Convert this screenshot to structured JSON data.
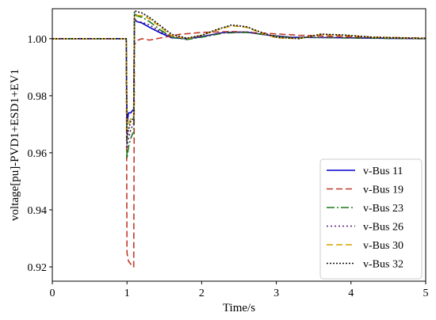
{
  "chart_data": {
    "type": "line",
    "title": "",
    "xlabel": "Time/s",
    "ylabel": "voltage[pu]-PVD1+ESD1+EV1",
    "xlim": [
      0,
      5
    ],
    "ylim": [
      0.915,
      1.0105
    ],
    "xticks": [
      "0",
      "1",
      "2",
      "3",
      "4",
      "5"
    ],
    "yticks": [
      "0.92",
      "0.94",
      "0.96",
      "0.98",
      "1.00"
    ],
    "grid": false,
    "legend_position": "lower-right",
    "series": [
      {
        "name": "v-Bus 11",
        "color": "#0000cc",
        "dash": "solid",
        "points": [
          [
            0,
            1.0
          ],
          [
            0.99,
            1.0
          ],
          [
            1.0,
            0.97
          ],
          [
            1.02,
            0.974
          ],
          [
            1.05,
            0.974
          ],
          [
            1.08,
            0.975
          ],
          [
            1.09,
            0.975
          ],
          [
            1.1,
            1.007
          ],
          [
            1.13,
            1.006
          ],
          [
            1.2,
            1.0055
          ],
          [
            1.3,
            1.004
          ],
          [
            1.45,
            1.002
          ],
          [
            1.6,
            1.0003
          ],
          [
            1.8,
            1.0
          ],
          [
            2.0,
            1.0007
          ],
          [
            2.3,
            1.0022
          ],
          [
            2.6,
            1.0023
          ],
          [
            2.9,
            1.0012
          ],
          [
            3.2,
            1.0005
          ],
          [
            3.6,
            1.0004
          ],
          [
            4.0,
            1.0003
          ],
          [
            4.5,
            1.0001
          ],
          [
            5.0,
            1.0
          ]
        ]
      },
      {
        "name": "v-Bus 19",
        "color": "#c0392b",
        "dash": "8,4",
        "points": [
          [
            0,
            1.0
          ],
          [
            0.99,
            1.0
          ],
          [
            1.0,
            0.925
          ],
          [
            1.02,
            0.922
          ],
          [
            1.05,
            0.921
          ],
          [
            1.08,
            0.92
          ],
          [
            1.09,
            0.92
          ],
          [
            1.1,
            0.998
          ],
          [
            1.15,
            0.9995
          ],
          [
            1.2,
            1.0
          ],
          [
            1.3,
            0.9995
          ],
          [
            1.5,
            1.0005
          ],
          [
            1.7,
            1.0015
          ],
          [
            2.0,
            1.0022
          ],
          [
            2.4,
            1.0025
          ],
          [
            2.8,
            1.002
          ],
          [
            3.3,
            1.0012
          ],
          [
            3.8,
            1.0008
          ],
          [
            4.3,
            1.0005
          ],
          [
            5.0,
            1.0002
          ]
        ]
      },
      {
        "name": "v-Bus 23",
        "color": "#1a7a1a",
        "dash": "10,3,2,3",
        "points": [
          [
            0,
            1.0
          ],
          [
            0.99,
            1.0
          ],
          [
            1.0,
            0.958
          ],
          [
            1.02,
            0.962
          ],
          [
            1.05,
            0.965
          ],
          [
            1.08,
            0.967
          ],
          [
            1.09,
            0.967
          ],
          [
            1.1,
            1.009
          ],
          [
            1.13,
            1.008
          ],
          [
            1.2,
            1.0075
          ],
          [
            1.3,
            1.006
          ],
          [
            1.45,
            1.003
          ],
          [
            1.6,
            1.0005
          ],
          [
            1.8,
            0.9997
          ],
          [
            2.0,
            1.0005
          ],
          [
            2.3,
            1.002
          ],
          [
            2.6,
            1.0022
          ],
          [
            2.9,
            1.0012
          ],
          [
            3.2,
            1.0004
          ],
          [
            3.6,
            1.0004
          ],
          [
            4.0,
            1.0002
          ],
          [
            5.0,
            1.0
          ]
        ]
      },
      {
        "name": "v-Bus 26",
        "color": "#5a1a7a",
        "dash": "2,3",
        "points": [
          [
            0,
            1.0
          ],
          [
            0.99,
            1.0
          ],
          [
            1.0,
            0.962
          ],
          [
            1.02,
            0.965
          ],
          [
            1.05,
            0.968
          ],
          [
            1.08,
            0.97
          ],
          [
            1.09,
            0.97
          ],
          [
            1.1,
            1.0065
          ],
          [
            1.13,
            1.006
          ],
          [
            1.2,
            1.0058
          ],
          [
            1.3,
            1.0048
          ],
          [
            1.45,
            1.0025
          ],
          [
            1.6,
            1.0008
          ],
          [
            1.8,
            1.0
          ],
          [
            2.0,
            1.0008
          ],
          [
            2.3,
            1.0022
          ],
          [
            2.6,
            1.0024
          ],
          [
            2.9,
            1.0012
          ],
          [
            3.2,
            1.0005
          ],
          [
            3.6,
            1.0004
          ],
          [
            4.0,
            1.0003
          ],
          [
            5.0,
            1.0
          ]
        ]
      },
      {
        "name": "v-Bus 30",
        "color": "#d4a000",
        "dash": "8,4",
        "points": [
          [
            0,
            1.0
          ],
          [
            0.99,
            1.0
          ],
          [
            1.0,
            0.968
          ],
          [
            1.02,
            0.97
          ],
          [
            1.05,
            0.972
          ],
          [
            1.08,
            0.973
          ],
          [
            1.09,
            0.973
          ],
          [
            1.1,
            1.0085
          ],
          [
            1.13,
            1.0082
          ],
          [
            1.2,
            1.008
          ],
          [
            1.3,
            1.007
          ],
          [
            1.45,
            1.004
          ],
          [
            1.6,
            1.001
          ],
          [
            1.8,
            1.0
          ],
          [
            2.0,
            1.0012
          ],
          [
            2.2,
            1.003
          ],
          [
            2.4,
            1.0045
          ],
          [
            2.6,
            1.004
          ],
          [
            2.8,
            1.002
          ],
          [
            3.0,
            1.0003
          ],
          [
            3.3,
            1.0
          ],
          [
            3.6,
            1.0015
          ],
          [
            3.9,
            1.0012
          ],
          [
            4.3,
            1.0005
          ],
          [
            5.0,
            1.0001
          ]
        ]
      },
      {
        "name": "v-Bus 32",
        "color": "#111111",
        "dash": "2,2",
        "points": [
          [
            0,
            1.0
          ],
          [
            0.99,
            1.0
          ],
          [
            1.0,
            0.965
          ],
          [
            1.02,
            0.968
          ],
          [
            1.05,
            0.971
          ],
          [
            1.08,
            0.972
          ],
          [
            1.09,
            0.972
          ],
          [
            1.1,
            1.0098
          ],
          [
            1.13,
            1.0095
          ],
          [
            1.2,
            1.009
          ],
          [
            1.3,
            1.0075
          ],
          [
            1.45,
            1.0045
          ],
          [
            1.6,
            1.0015
          ],
          [
            1.8,
            1.0002
          ],
          [
            2.0,
            1.0012
          ],
          [
            2.2,
            1.0032
          ],
          [
            2.4,
            1.0048
          ],
          [
            2.6,
            1.0042
          ],
          [
            2.8,
            1.0022
          ],
          [
            3.0,
            1.0005
          ],
          [
            3.3,
            1.0
          ],
          [
            3.6,
            1.0016
          ],
          [
            3.9,
            1.0013
          ],
          [
            4.3,
            1.0005
          ],
          [
            5.0,
            1.0001
          ]
        ]
      }
    ]
  }
}
